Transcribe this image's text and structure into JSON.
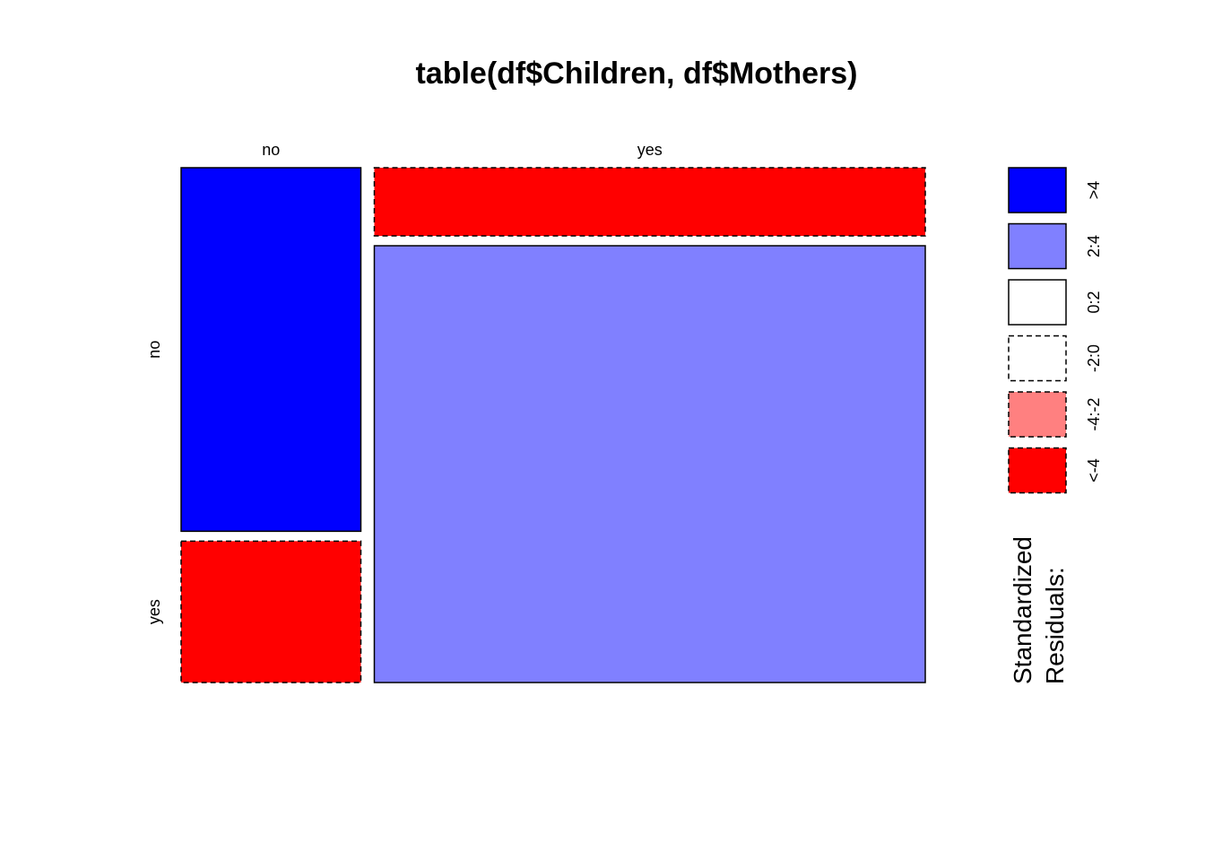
{
  "chart_data": {
    "type": "mosaic",
    "title": "table(df$Children, df$Mothers)",
    "column_variable_levels": [
      "no",
      "yes"
    ],
    "row_variable_levels": [
      "no",
      "yes"
    ],
    "column_proportions": [
      0.246,
      0.754
    ],
    "cells": [
      {
        "column": "no",
        "row": "no",
        "column_share": 0.72,
        "residual_class": ">4"
      },
      {
        "column": "no",
        "row": "yes",
        "column_share": 0.28,
        "residual_class": "<-4"
      },
      {
        "column": "yes",
        "row": "no",
        "column_share": 0.135,
        "residual_class": "<-4"
      },
      {
        "column": "yes",
        "row": "yes",
        "column_share": 0.865,
        "residual_class": "2:4"
      }
    ],
    "legend": {
      "title_lines": [
        "Standardized",
        "Residuals:"
      ],
      "placement": "right",
      "entries": [
        {
          "label": ">4",
          "fill": "#0000ff",
          "dashed": false
        },
        {
          "label": "2:4",
          "fill": "#8080ff",
          "dashed": false
        },
        {
          "label": "0:2",
          "fill": "#ffffff",
          "dashed": false
        },
        {
          "label": "-2:0",
          "fill": "#ffffff",
          "dashed": true
        },
        {
          "label": "-4:-2",
          "fill": "#ff8080",
          "dashed": true
        },
        {
          "label": "<-4",
          "fill": "#ff0000",
          "dashed": true
        }
      ]
    }
  }
}
